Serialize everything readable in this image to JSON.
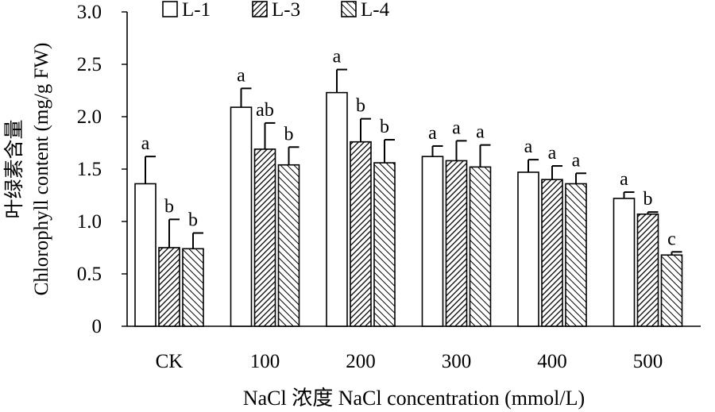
{
  "chart_data": {
    "type": "bar",
    "title": "",
    "xlabel": "NaCl 浓度 NaCl concentration (mmol/L)",
    "ylabel_cn": "叶绿素含量",
    "ylabel_en": "Chlorophyll content (mg/g FW)",
    "categories": [
      "CK",
      "100",
      "200",
      "300",
      "400",
      "500"
    ],
    "ylim": [
      0,
      3.0
    ],
    "yticks": [
      0,
      0.5,
      1.0,
      1.5,
      2.0,
      2.5,
      3.0
    ],
    "ytick_labels": [
      "0",
      "0.5",
      "1.0",
      "1.5",
      "2.0",
      "2.5",
      "3.0"
    ],
    "legend_position": "top",
    "grid": false,
    "series": [
      {
        "name": "L-1",
        "pattern": "none",
        "values": [
          1.36,
          2.09,
          2.23,
          1.62,
          1.47,
          1.22
        ],
        "errors": [
          0.26,
          0.18,
          0.22,
          0.1,
          0.12,
          0.06
        ],
        "letters": [
          "a",
          "a",
          "a",
          "a",
          "a",
          "a"
        ]
      },
      {
        "name": "L-3",
        "pattern": "dense-diagonal",
        "values": [
          0.75,
          1.69,
          1.76,
          1.58,
          1.4,
          1.07
        ],
        "errors": [
          0.27,
          0.25,
          0.22,
          0.19,
          0.13,
          0.02
        ],
        "letters": [
          "b",
          "ab",
          "b",
          "a",
          "a",
          "b"
        ]
      },
      {
        "name": "L-4",
        "pattern": "sparse-diagonal",
        "values": [
          0.74,
          1.54,
          1.56,
          1.52,
          1.36,
          0.68
        ],
        "errors": [
          0.15,
          0.17,
          0.22,
          0.21,
          0.1,
          0.03
        ],
        "letters": [
          "b",
          "b",
          "b",
          "a",
          "a",
          "c"
        ]
      }
    ]
  }
}
